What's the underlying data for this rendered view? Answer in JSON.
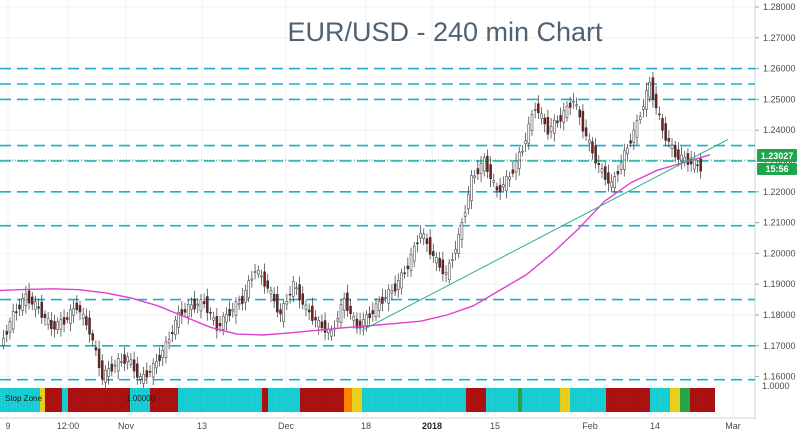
{
  "chart_data": {
    "type": "candlestick",
    "title": "EUR/USD - 240 min Chart",
    "price_axis": {
      "range": [
        1.155,
        1.2835
      ],
      "ticks": [
        "1.28000",
        "1.27000",
        "1.26000",
        "1.25000",
        "1.24000",
        "1.23000",
        "1.22000",
        "1.21000",
        "1.20000",
        "1.19000",
        "1.18000",
        "1.17000",
        "1.16000"
      ]
    },
    "time_axis": {
      "labels": [
        "9",
        "12:00",
        "Nov",
        "13",
        "Dec",
        "18",
        "2018",
        "15",
        "Feb",
        "14",
        "Mar"
      ],
      "bold_labels": [
        "2018"
      ]
    },
    "current_price": {
      "value": "1.23027",
      "label": "1.23027",
      "countdown": "15:56",
      "color": "#1fa64a"
    },
    "horizontal_levels": [
      1.26,
      1.255,
      1.25,
      1.235,
      1.23,
      1.22,
      1.209,
      1.185,
      1.17,
      1.159
    ],
    "level_color": "#1ab0cc",
    "trendline": {
      "from": [
        1.175,
        "Dec-18"
      ],
      "to": [
        1.237,
        "Feb-26"
      ],
      "color": "#2fae86"
    },
    "moving_average": {
      "color": "#e040d0",
      "values": [
        1.188,
        1.1883,
        1.1885,
        1.1882,
        1.1872,
        1.1855,
        1.183,
        1.1795,
        1.176,
        1.1738,
        1.1735,
        1.1742,
        1.175,
        1.1758,
        1.1765,
        1.1772,
        1.178,
        1.18,
        1.183,
        1.188,
        1.193,
        1.2,
        1.208,
        1.217,
        1.223,
        1.227,
        1.2295,
        1.232
      ]
    },
    "candles_close": [
      1.17,
      1.18,
      1.186,
      1.182,
      1.176,
      1.178,
      1.183,
      1.175,
      1.16,
      1.164,
      1.166,
      1.159,
      1.163,
      1.17,
      1.18,
      1.183,
      1.184,
      1.176,
      1.181,
      1.185,
      1.195,
      1.189,
      1.18,
      1.19,
      1.182,
      1.177,
      1.174,
      1.185,
      1.176,
      1.18,
      1.185,
      1.189,
      1.196,
      1.207,
      1.199,
      1.193,
      1.205,
      1.224,
      1.23,
      1.22,
      1.225,
      1.234,
      1.248,
      1.24,
      1.244,
      1.25,
      1.238,
      1.228,
      1.222,
      1.232,
      1.242,
      1.255,
      1.24,
      1.232,
      1.23,
      1.228
    ],
    "stop_zone": {
      "label": "Stop Zone",
      "value": "1.00000",
      "axis_label": "1.0000"
    }
  }
}
